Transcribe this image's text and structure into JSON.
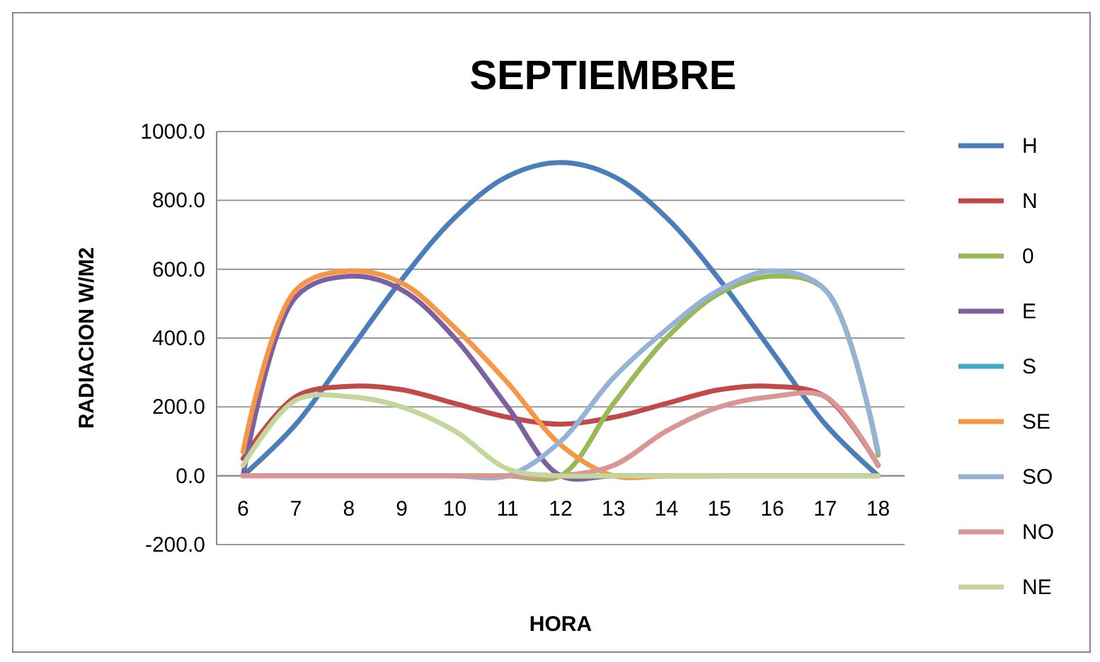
{
  "chart_data": {
    "type": "line",
    "title": "SEPTIEMBRE",
    "xlabel": "HORA",
    "ylabel": "RADIACION W/M2",
    "categories": [
      "6",
      "7",
      "8",
      "9",
      "10",
      "11",
      "12",
      "13",
      "14",
      "15",
      "16",
      "17",
      "18"
    ],
    "ylim": [
      -200,
      1000
    ],
    "yticks": [
      {
        "value": -200,
        "label": "-200.0"
      },
      {
        "value": 0,
        "label": "0.0"
      },
      {
        "value": 200,
        "label": "200.0"
      },
      {
        "value": 400,
        "label": "400.0"
      },
      {
        "value": 600,
        "label": "600.0"
      },
      {
        "value": 800,
        "label": "800.0"
      },
      {
        "value": 1000,
        "label": "1000.0"
      }
    ],
    "grid": "y",
    "legend": "right",
    "marker": "none",
    "line_style": "solid",
    "series": [
      {
        "name": "H",
        "color": "#4a7ebb",
        "values": [
          0,
          150,
          360,
          570,
          750,
          870,
          910,
          870,
          750,
          570,
          360,
          150,
          0
        ]
      },
      {
        "name": "N",
        "color": "#be4b48",
        "values": [
          50,
          230,
          260,
          250,
          210,
          170,
          150,
          170,
          210,
          250,
          260,
          230,
          30
        ]
      },
      {
        "name": "0",
        "color": "#98b954",
        "values": [
          null,
          null,
          null,
          null,
          0,
          0,
          0,
          210,
          400,
          530,
          580,
          540,
          60
        ]
      },
      {
        "name": "E",
        "color": "#7d60a0",
        "values": [
          0,
          520,
          580,
          540,
          400,
          200,
          0,
          0,
          0,
          0,
          0,
          0,
          0
        ]
      },
      {
        "name": "S",
        "color": "#46aac5",
        "values": [
          null,
          null,
          null,
          null,
          null,
          null,
          null,
          null,
          null,
          null,
          null,
          null,
          null
        ]
      },
      {
        "name": "SE",
        "color": "#f79646",
        "values": [
          70,
          540,
          595,
          560,
          430,
          270,
          90,
          0,
          0,
          0,
          null,
          null,
          null
        ]
      },
      {
        "name": "SO",
        "color": "#95b3d7",
        "values": [
          0,
          0,
          0,
          0,
          0,
          0,
          100,
          285,
          425,
          540,
          595,
          540,
          70
        ]
      },
      {
        "name": "NO",
        "color": "#d99694",
        "values": [
          0,
          0,
          0,
          0,
          0,
          0,
          0,
          30,
          130,
          200,
          230,
          230,
          30
        ]
      },
      {
        "name": "NE",
        "color": "#c3d69b",
        "values": [
          30,
          220,
          230,
          200,
          130,
          20,
          0,
          0,
          0,
          0,
          0,
          0,
          0
        ]
      }
    ]
  }
}
